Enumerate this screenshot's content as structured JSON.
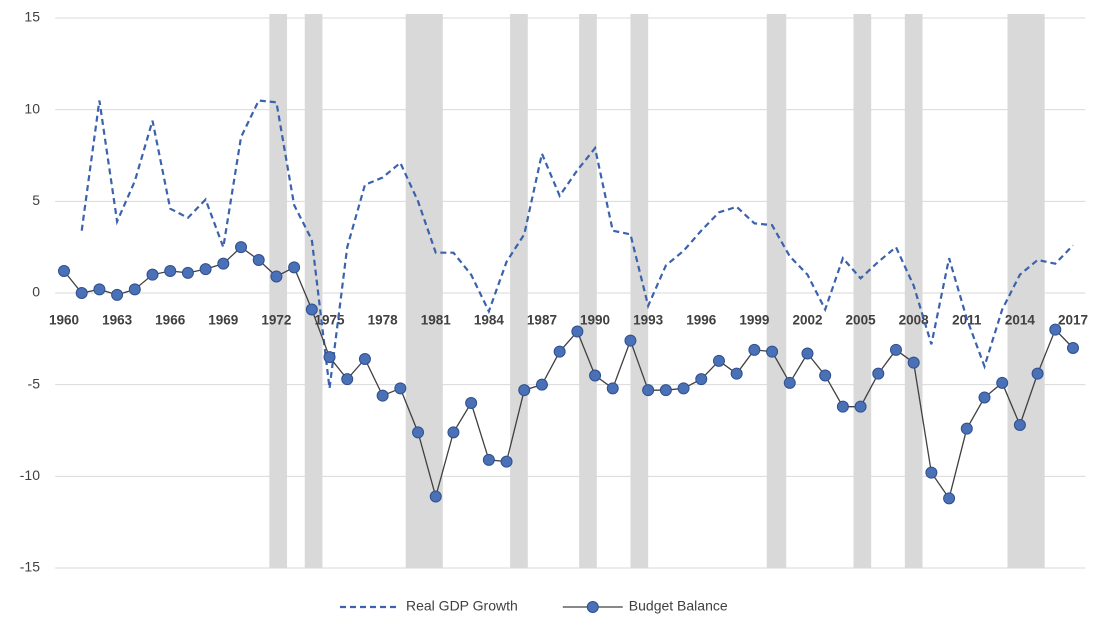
{
  "chart_data": {
    "type": "line",
    "x": [
      1960,
      1961,
      1962,
      1963,
      1964,
      1965,
      1966,
      1967,
      1968,
      1969,
      1970,
      1971,
      1972,
      1973,
      1974,
      1975,
      1976,
      1977,
      1978,
      1979,
      1980,
      1981,
      1982,
      1983,
      1984,
      1985,
      1986,
      1987,
      1988,
      1989,
      1990,
      1991,
      1992,
      1993,
      1994,
      1995,
      1996,
      1997,
      1998,
      1999,
      2000,
      2001,
      2002,
      2003,
      2004,
      2005,
      2006,
      2007,
      2008,
      2009,
      2010,
      2011,
      2012,
      2013,
      2014,
      2015,
      2016,
      2017
    ],
    "series": [
      {
        "name": "Real GDP Growth",
        "color": "#3b62ad",
        "dashed": true,
        "markers": false,
        "values": [
          null,
          3.4,
          10.5,
          3.9,
          6.1,
          9.4,
          4.6,
          4.1,
          5.1,
          2.5,
          8.5,
          10.5,
          10.4,
          4.8,
          2.9,
          -5.2,
          2.5,
          5.9,
          6.3,
          7.1,
          5.0,
          2.2,
          2.2,
          1.0,
          -1.0,
          1.7,
          3.2,
          7.6,
          5.3,
          6.7,
          7.9,
          3.4,
          3.2,
          -0.7,
          1.5,
          2.3,
          3.4,
          4.4,
          4.7,
          3.8,
          3.7,
          2.0,
          1.0,
          -0.9,
          1.9,
          0.8,
          1.7,
          2.5,
          0.4,
          -2.8,
          1.9,
          -1.4,
          -4.0,
          -0.9,
          1.0,
          1.8,
          1.6,
          2.6
        ]
      },
      {
        "name": "Budget Balance",
        "color": "#404040",
        "marker_color": "#4a70b5",
        "dashed": false,
        "markers": true,
        "values": [
          1.2,
          0.0,
          0.2,
          -0.1,
          0.2,
          1.0,
          1.2,
          1.1,
          1.3,
          1.6,
          2.5,
          1.8,
          0.9,
          1.4,
          -0.9,
          -3.5,
          -4.7,
          -3.6,
          -5.6,
          -5.2,
          -7.6,
          -11.1,
          -7.6,
          -6.0,
          -9.1,
          -9.2,
          -5.3,
          -5.0,
          -3.2,
          -2.1,
          -4.5,
          -5.2,
          -2.6,
          -5.3,
          -5.3,
          -5.2,
          -4.7,
          -3.7,
          -4.4,
          -3.1,
          -3.2,
          -4.9,
          -3.3,
          -4.5,
          -6.2,
          -6.2,
          -4.4,
          -3.1,
          -3.8,
          -9.8,
          -11.2,
          -7.4,
          -5.7,
          -4.9,
          -7.2,
          -4.4,
          -2.0,
          -3.0
        ]
      }
    ],
    "shaded_bands": [
      [
        1971.6,
        1972.6
      ],
      [
        1973.6,
        1974.6
      ],
      [
        1979.3,
        1981.4
      ],
      [
        1985.2,
        1986.2
      ],
      [
        1989.1,
        1990.1
      ],
      [
        1992.0,
        1993.0
      ],
      [
        1999.7,
        2000.8
      ],
      [
        2004.6,
        2005.6
      ],
      [
        2007.5,
        2008.5
      ],
      [
        2013.3,
        2015.4
      ]
    ],
    "band_color": "#d9d9d9",
    "xlim": [
      1960,
      2017
    ],
    "xticks": [
      1960,
      1963,
      1966,
      1969,
      1972,
      1975,
      1978,
      1981,
      1984,
      1987,
      1990,
      1993,
      1996,
      1999,
      2002,
      2005,
      2008,
      2011,
      2014,
      2017
    ],
    "ylim": [
      -15,
      15
    ],
    "yticks": [
      15,
      10,
      5,
      0,
      -5,
      -10,
      -15
    ],
    "grid": true,
    "legend": "bottom"
  }
}
